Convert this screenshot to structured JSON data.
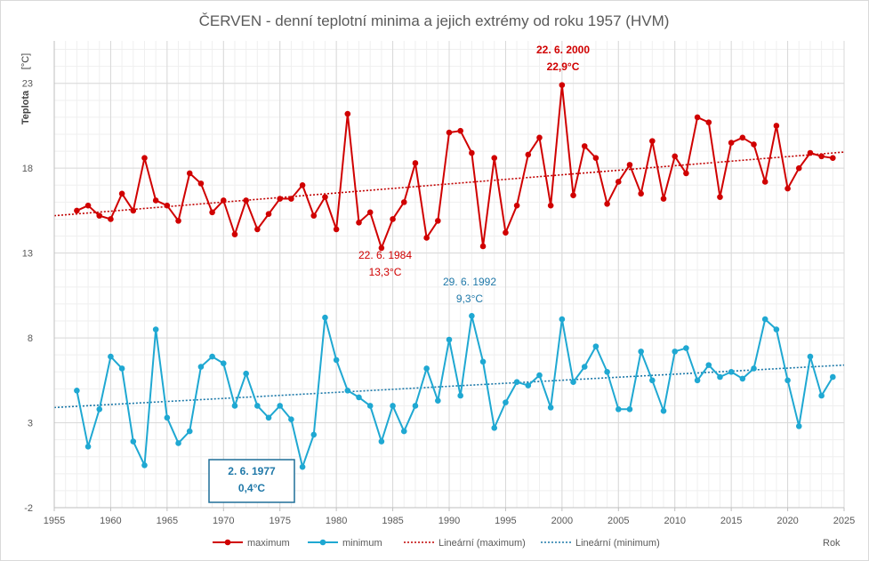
{
  "chart_data": {
    "type": "line",
    "title": "ČERVEN - denní teplotní minima a jejich extrémy od roku 1957 (HVM)",
    "ylabel": "Teplota",
    "yunit": "[°C]",
    "xlabel": "Rok",
    "xlim": [
      1955,
      2025
    ],
    "ylim": [
      -2,
      25.5
    ],
    "x_ticks": [
      1955,
      1960,
      1965,
      1970,
      1975,
      1980,
      1985,
      1990,
      1995,
      2000,
      2005,
      2010,
      2015,
      2020,
      2025
    ],
    "y_ticks": [
      -2,
      3,
      8,
      13,
      18,
      23
    ],
    "grid": true,
    "legend_position": "bottom",
    "x": [
      1957,
      1958,
      1959,
      1960,
      1961,
      1962,
      1963,
      1964,
      1965,
      1966,
      1967,
      1968,
      1969,
      1970,
      1971,
      1972,
      1973,
      1974,
      1975,
      1976,
      1977,
      1978,
      1979,
      1980,
      1981,
      1982,
      1983,
      1984,
      1985,
      1986,
      1987,
      1988,
      1989,
      1990,
      1991,
      1992,
      1993,
      1994,
      1995,
      1996,
      1997,
      1998,
      1999,
      2000,
      2001,
      2002,
      2003,
      2004,
      2005,
      2006,
      2007,
      2008,
      2009,
      2010,
      2011,
      2012,
      2013,
      2014,
      2015,
      2016,
      2017,
      2018,
      2019,
      2020,
      2021,
      2022,
      2023,
      2024
    ],
    "series": [
      {
        "name": "maximum",
        "color": "#d00000",
        "values": [
          15.5,
          15.8,
          15.2,
          15.0,
          16.5,
          15.5,
          18.6,
          16.1,
          15.8,
          14.9,
          17.7,
          17.1,
          15.4,
          16.1,
          14.1,
          16.1,
          14.4,
          15.3,
          16.2,
          16.2,
          17.0,
          15.2,
          16.3,
          14.4,
          21.2,
          14.8,
          15.4,
          13.3,
          15.0,
          16.0,
          18.3,
          13.9,
          14.9,
          20.1,
          20.2,
          18.9,
          13.4,
          18.6,
          14.2,
          15.8,
          18.8,
          19.8,
          15.8,
          22.9,
          16.4,
          19.3,
          18.6,
          15.9,
          17.2,
          18.2,
          16.5,
          19.6,
          16.2,
          18.7,
          17.7,
          21.0,
          20.7,
          16.3,
          19.5,
          19.8,
          19.4,
          17.2,
          20.5,
          16.8,
          18.0,
          18.9,
          18.7,
          18.6
        ]
      },
      {
        "name": "minimum",
        "color": "#1fa8d2",
        "values": [
          4.9,
          1.6,
          3.8,
          6.9,
          6.2,
          1.9,
          0.5,
          8.5,
          3.3,
          1.8,
          2.5,
          6.3,
          6.9,
          6.5,
          4.0,
          5.9,
          4.0,
          3.3,
          4.0,
          3.2,
          0.4,
          2.3,
          9.2,
          6.7,
          4.9,
          4.5,
          4.0,
          1.9,
          4.0,
          2.5,
          4.0,
          6.2,
          4.3,
          7.9,
          4.6,
          9.3,
          6.6,
          2.7,
          4.2,
          5.4,
          5.2,
          5.8,
          3.9,
          9.1,
          5.4,
          6.3,
          7.5,
          6.0,
          3.8,
          3.8,
          7.2,
          5.5,
          3.7,
          7.2,
          7.4,
          5.5,
          6.4,
          5.7,
          6.0,
          5.6,
          6.2,
          9.1,
          8.5,
          5.5,
          2.8,
          6.9,
          4.6,
          5.7
        ]
      }
    ],
    "trendlines": [
      {
        "name": "Lineární (maximum)",
        "color": "#c00000",
        "start": [
          1955,
          15.2
        ],
        "end": [
          2025,
          18.95
        ]
      },
      {
        "name": "Lineární (minimum)",
        "color": "#1b78a8",
        "start": [
          1955,
          3.9
        ],
        "end": [
          2025,
          6.4
        ]
      }
    ],
    "annotations": [
      {
        "line1": "22. 6. 2000",
        "line2": "22,9°C",
        "color": "#d00000",
        "bold": true,
        "boxed": false
      },
      {
        "line1": "22. 6. 1984",
        "line2": "13,3°C",
        "color": "#d00000",
        "bold": false,
        "boxed": false
      },
      {
        "line1": "29. 6. 1992",
        "line2": "9,3°C",
        "color": "#1f78a8",
        "bold": false,
        "boxed": false
      },
      {
        "line1": "2. 6. 1977",
        "line2": "0,4°C",
        "color": "#1f78a8",
        "bold": true,
        "boxed": true
      }
    ]
  }
}
